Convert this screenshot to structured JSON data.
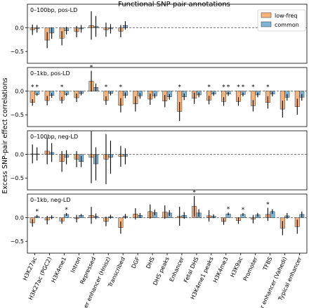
{
  "chart_data": {
    "type": "bar",
    "title": "Functional SNP-pair annotations",
    "ylabel": "Excess SNP-pair effect correlations",
    "legend": {
      "placement": "top-right",
      "entries": [
        {
          "name": "low-freq",
          "color": "#f7b27a"
        },
        {
          "name": "common",
          "color": "#7fb4d6"
        }
      ]
    },
    "categories": [
      "H3K27ac",
      "H3K27ac (PGC2)",
      "H3K4me1",
      "Intron",
      "Repressed",
      "Super enhancer (Hnisz)",
      "Transcribed",
      "DGF",
      "DHS",
      "DHS peaks",
      "Enhancer",
      "Fetal DHS",
      "H3K4me1 peaks",
      "H3K4me3",
      "H3K9ac",
      "Promoter",
      "TFBS",
      "Super enhancer (Vahedi)",
      "Typical enhancer"
    ],
    "ylim": [
      -0.75,
      0.5
    ],
    "yticks": [
      "0.0",
      "−0.5"
    ],
    "panels": [
      {
        "label": "0–100bp, pos-LD",
        "low_freq": [
          -0.04,
          -0.26,
          -0.22,
          -0.08,
          0.05,
          -0.04,
          -0.07
        ],
        "low_freq_err": [
          0.11,
          0.17,
          0.15,
          0.12,
          0.3,
          0.15,
          0.13
        ],
        "common": [
          -0.02,
          -0.11,
          -0.06,
          -0.02,
          0.03,
          -0.02,
          0.05
        ],
        "common_err": [
          0.08,
          0.12,
          0.08,
          0.08,
          0.22,
          0.1,
          0.09
        ],
        "stars_low": [],
        "stars_common": []
      },
      {
        "label": "0–1kb, pos-LD",
        "low_freq": [
          -0.24,
          -0.2,
          -0.19,
          -0.14,
          0.21,
          -0.2,
          -0.3,
          -0.27,
          -0.17,
          -0.21,
          -0.43,
          -0.15,
          -0.19,
          -0.22,
          -0.22,
          -0.31,
          -0.24,
          -0.38,
          -0.33
        ],
        "low_freq_err": [
          0.07,
          0.1,
          0.07,
          0.09,
          0.22,
          0.09,
          0.15,
          0.16,
          0.12,
          0.13,
          0.2,
          0.12,
          0.09,
          0.09,
          0.09,
          0.12,
          0.13,
          0.18,
          0.17
        ],
        "common": [
          -0.07,
          -0.09,
          -0.07,
          -0.05,
          0.08,
          -0.05,
          -0.09,
          -0.1,
          -0.1,
          -0.12,
          -0.12,
          -0.08,
          -0.06,
          -0.06,
          -0.07,
          -0.08,
          -0.06,
          -0.13,
          -0.13
        ],
        "common_err": [
          0.03,
          0.05,
          0.03,
          0.04,
          0.08,
          0.04,
          0.06,
          0.06,
          0.05,
          0.06,
          0.07,
          0.05,
          0.04,
          0.04,
          0.04,
          0.05,
          0.05,
          0.07,
          0.07
        ],
        "stars_low": [
          0,
          2,
          4,
          5,
          6,
          10,
          12,
          13,
          14,
          15,
          16
        ],
        "stars_common": [
          0,
          13,
          14
        ]
      },
      {
        "label": "0–100bp, neg-LD",
        "low_freq": [
          0.01,
          0.07,
          -0.15,
          -0.1,
          -0.06,
          -0.1,
          -0.04
        ],
        "low_freq_err": [
          0.2,
          0.28,
          0.22,
          0.17,
          0.55,
          0.53,
          0.22
        ],
        "common": [
          0.01,
          0.04,
          -0.06,
          -0.15,
          -0.2,
          -0.06,
          -0.04
        ],
        "common_err": [
          0.14,
          0.2,
          0.15,
          0.12,
          0.35,
          0.35,
          0.17
        ],
        "stars_low": [],
        "stars_common": []
      },
      {
        "label": "0–1kb, neg-LD",
        "low_freq": [
          -0.11,
          -0.05,
          -0.07,
          -0.02,
          0.05,
          -0.08,
          -0.21,
          0.08,
          0.13,
          0.12,
          0.03,
          0.24,
          0.04,
          -0.08,
          -0.06,
          -0.03,
          0.07,
          -0.22,
          -0.19
        ],
        "low_freq_err": [
          0.08,
          0.09,
          0.06,
          0.08,
          0.18,
          0.1,
          0.13,
          0.12,
          0.15,
          0.14,
          0.2,
          0.22,
          0.12,
          0.07,
          0.07,
          0.09,
          0.14,
          0.15,
          0.15
        ],
        "common": [
          0.03,
          0.01,
          0.07,
          0.05,
          0.03,
          0.02,
          0.03,
          0.05,
          0.11,
          0.1,
          0.05,
          0.1,
          0.03,
          0.08,
          0.07,
          0.06,
          0.13,
          0.04,
          0.07
        ],
        "common_err": [
          0.03,
          0.04,
          0.03,
          0.03,
          0.06,
          0.04,
          0.05,
          0.05,
          0.06,
          0.06,
          0.07,
          0.08,
          0.04,
          0.03,
          0.03,
          0.04,
          0.05,
          0.06,
          0.06
        ],
        "stars_low": [
          11,
          16
        ],
        "stars_common": [
          0,
          2,
          13,
          14
        ]
      }
    ]
  }
}
